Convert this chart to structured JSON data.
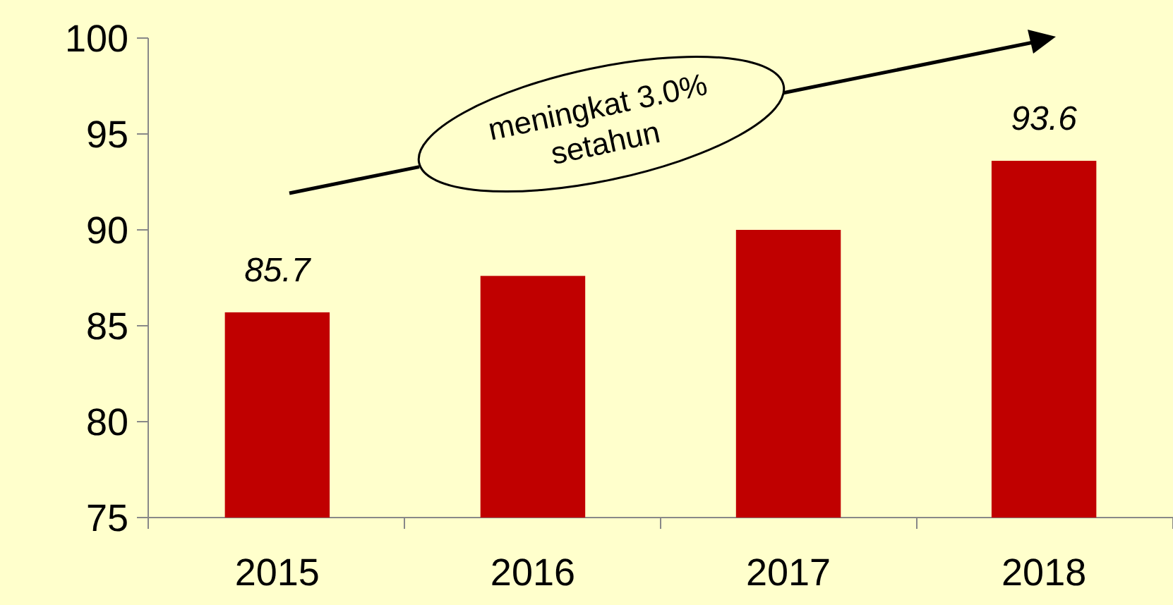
{
  "chart_data": {
    "type": "bar",
    "categories": [
      "2015",
      "2016",
      "2017",
      "2018"
    ],
    "values": [
      85.7,
      87.6,
      90.0,
      93.6
    ],
    "color": "#c00000",
    "value_labels": [
      "85.7",
      null,
      null,
      "93.6"
    ],
    "ylim": [
      75,
      100
    ],
    "yticks": [
      75,
      80,
      85,
      90,
      95,
      100
    ],
    "annotations": [
      "meningkat 3.0%\nsetahun"
    ]
  }
}
